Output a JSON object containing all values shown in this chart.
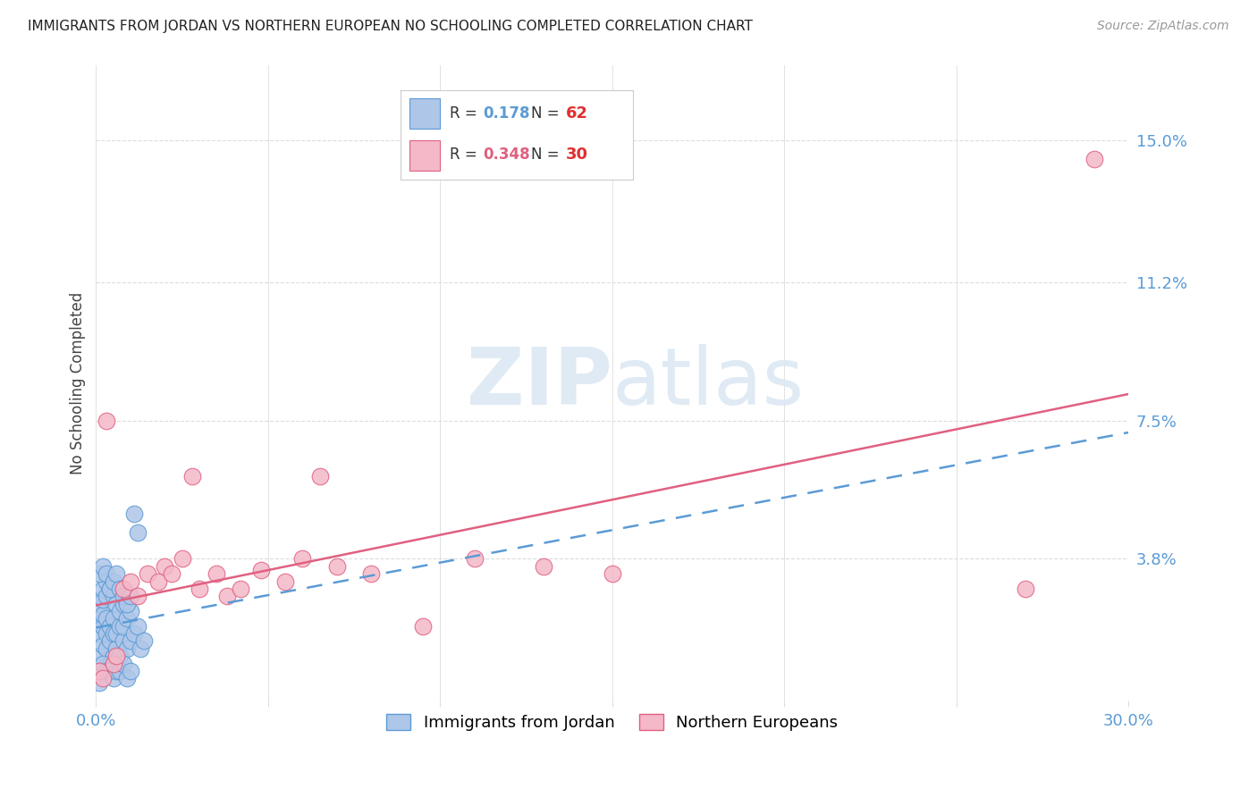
{
  "title": "IMMIGRANTS FROM JORDAN VS NORTHERN EUROPEAN NO SCHOOLING COMPLETED CORRELATION CHART",
  "source": "Source: ZipAtlas.com",
  "ylabel": "No Schooling Completed",
  "xlim": [
    0.0,
    0.3
  ],
  "ylim": [
    0.0,
    0.17
  ],
  "yticks": [
    0.0,
    0.038,
    0.075,
    0.112,
    0.15
  ],
  "ytick_labels": [
    "",
    "3.8%",
    "7.5%",
    "11.2%",
    "15.0%"
  ],
  "xticks": [
    0.0,
    0.05,
    0.1,
    0.15,
    0.2,
    0.25,
    0.3
  ],
  "xtick_labels": [
    "0.0%",
    "",
    "",
    "",
    "",
    "",
    "30.0%"
  ],
  "background_color": "#ffffff",
  "grid_color": "#dddddd",
  "blue_fill": "#aec6e8",
  "blue_edge": "#5b9bd5",
  "pink_fill": "#f4b8c8",
  "pink_edge": "#e06080",
  "blue_line_color": "#5b9bd5",
  "pink_line_color": "#e06080",
  "text_color_blue": "#5b9bd5",
  "watermark_color": "#dce8f3",
  "jordan_x": [
    0.001,
    0.001,
    0.001,
    0.001,
    0.001,
    0.002,
    0.002,
    0.002,
    0.002,
    0.002,
    0.003,
    0.003,
    0.003,
    0.003,
    0.003,
    0.004,
    0.004,
    0.004,
    0.004,
    0.005,
    0.005,
    0.005,
    0.005,
    0.006,
    0.006,
    0.006,
    0.007,
    0.007,
    0.007,
    0.008,
    0.008,
    0.008,
    0.009,
    0.009,
    0.01,
    0.01,
    0.011,
    0.012,
    0.013,
    0.014,
    0.001,
    0.002,
    0.003,
    0.004,
    0.005,
    0.006,
    0.007,
    0.008,
    0.009,
    0.01,
    0.001,
    0.002,
    0.003,
    0.004,
    0.005,
    0.006,
    0.007,
    0.008,
    0.009,
    0.01,
    0.011,
    0.012
  ],
  "jordan_y": [
    0.012,
    0.018,
    0.022,
    0.026,
    0.005,
    0.015,
    0.02,
    0.023,
    0.027,
    0.03,
    0.014,
    0.018,
    0.022,
    0.028,
    0.032,
    0.01,
    0.016,
    0.02,
    0.03,
    0.012,
    0.018,
    0.022,
    0.028,
    0.014,
    0.018,
    0.026,
    0.012,
    0.02,
    0.024,
    0.016,
    0.02,
    0.026,
    0.014,
    0.022,
    0.016,
    0.024,
    0.018,
    0.02,
    0.014,
    0.016,
    0.008,
    0.01,
    0.008,
    0.008,
    0.006,
    0.008,
    0.008,
    0.01,
    0.006,
    0.008,
    0.034,
    0.036,
    0.034,
    0.03,
    0.032,
    0.034,
    0.03,
    0.028,
    0.026,
    0.028,
    0.05,
    0.045
  ],
  "northern_x": [
    0.001,
    0.002,
    0.003,
    0.005,
    0.006,
    0.008,
    0.01,
    0.012,
    0.015,
    0.018,
    0.02,
    0.022,
    0.025,
    0.028,
    0.03,
    0.035,
    0.038,
    0.042,
    0.048,
    0.055,
    0.06,
    0.065,
    0.07,
    0.08,
    0.095,
    0.11,
    0.13,
    0.15,
    0.27,
    0.29
  ],
  "northern_y": [
    0.008,
    0.006,
    0.075,
    0.01,
    0.012,
    0.03,
    0.032,
    0.028,
    0.034,
    0.032,
    0.036,
    0.034,
    0.038,
    0.06,
    0.03,
    0.034,
    0.028,
    0.03,
    0.035,
    0.032,
    0.038,
    0.06,
    0.036,
    0.034,
    0.02,
    0.038,
    0.036,
    0.034,
    0.03,
    0.145
  ],
  "legend_blue_r": "0.178",
  "legend_blue_n": "62",
  "legend_pink_r": "0.348",
  "legend_pink_n": "30"
}
